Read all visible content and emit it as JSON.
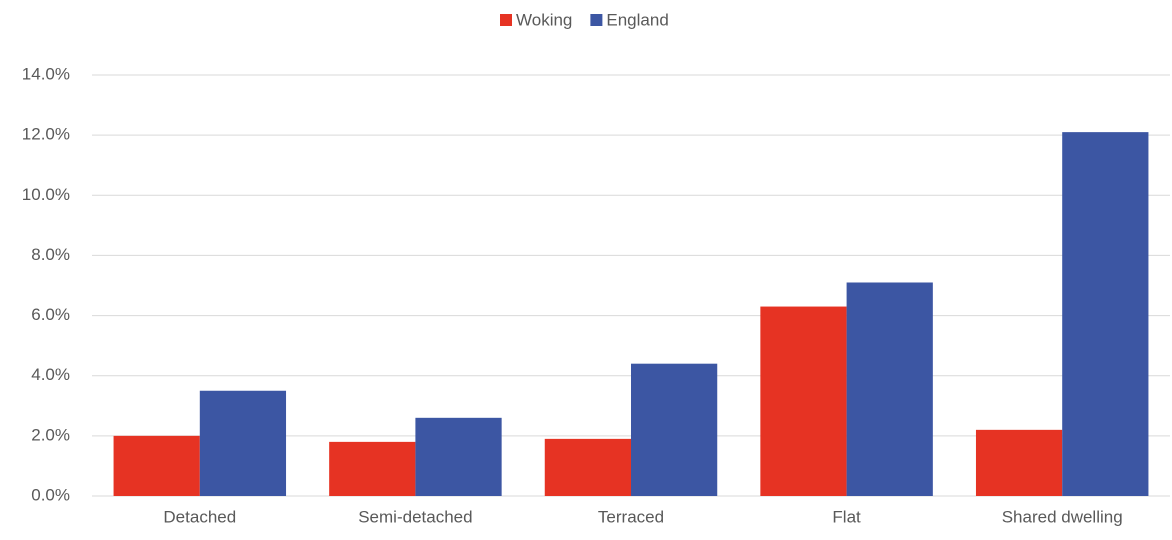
{
  "chart_data": {
    "type": "bar",
    "categories": [
      "Detached",
      "Semi-detached",
      "Terraced",
      "Flat",
      "Shared dwelling"
    ],
    "series": [
      {
        "name": "Woking",
        "color": "#e63323",
        "values": [
          2.0,
          1.8,
          1.9,
          6.3,
          2.2
        ]
      },
      {
        "name": "England",
        "color": "#3c56a3",
        "values": [
          3.5,
          2.6,
          4.4,
          7.1,
          12.1
        ]
      }
    ],
    "ylim": [
      0,
      14
    ],
    "yticks": [
      {
        "value": 0,
        "label": "0.0%"
      },
      {
        "value": 2,
        "label": "2.0%"
      },
      {
        "value": 4,
        "label": "4.0%"
      },
      {
        "value": 6,
        "label": "6.0%"
      },
      {
        "value": 8,
        "label": "8.0%"
      },
      {
        "value": 10,
        "label": "10.0%"
      },
      {
        "value": 12,
        "label": "12.0%"
      },
      {
        "value": 14,
        "label": "14.0%"
      }
    ],
    "grid": true,
    "legend": "top"
  }
}
